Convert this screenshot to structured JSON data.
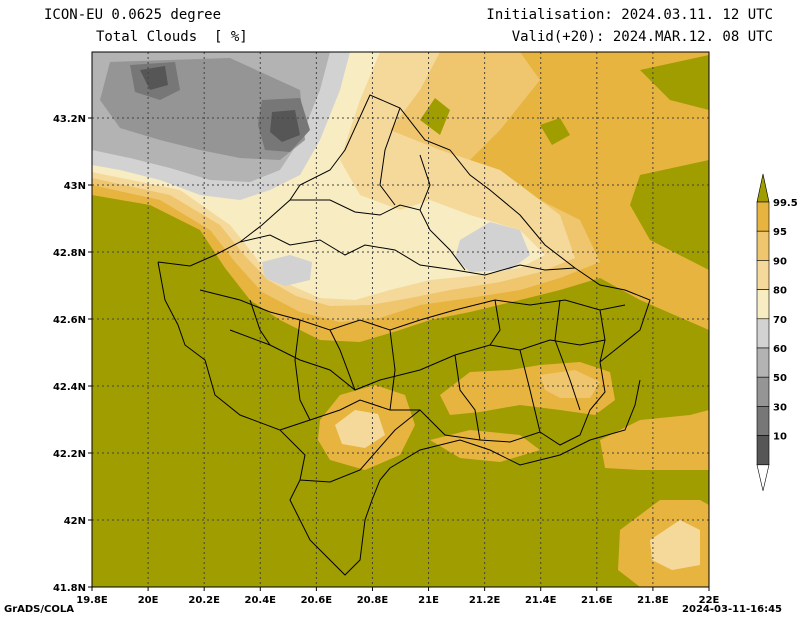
{
  "header": {
    "model": "ICON-EU 0.0625 degree",
    "variable": "Total Clouds  [ %]",
    "init": "Initialisation: 2024.03.11. 12 UTC",
    "valid": "Valid(+20): 2024.MAR.12. 08 UTC"
  },
  "axes": {
    "x_ticks": [
      "19.8E",
      "20E",
      "20.2E",
      "20.4E",
      "20.6E",
      "20.8E",
      "21E",
      "21.2E",
      "21.4E",
      "21.6E",
      "21.8E",
      "22E"
    ],
    "y_ticks": [
      "43.2N",
      "43N",
      "42.8N",
      "42.6N",
      "42.4N",
      "42.2N",
      "42N",
      "41.8N"
    ]
  },
  "legend": {
    "labels": [
      "99.5",
      "95",
      "90",
      "80",
      "70",
      "60",
      "50",
      "30",
      "10"
    ],
    "colors": [
      "#a09d00",
      "#e7b440",
      "#efc66e",
      "#f5d99a",
      "#f7ecc2",
      "#d2d2d2",
      "#b3b3b3",
      "#959595",
      "#777777",
      "#565656",
      "#ffffff"
    ]
  },
  "footer": {
    "left": "GrADS/COLA",
    "right": "2024-03-11-16:45"
  }
}
